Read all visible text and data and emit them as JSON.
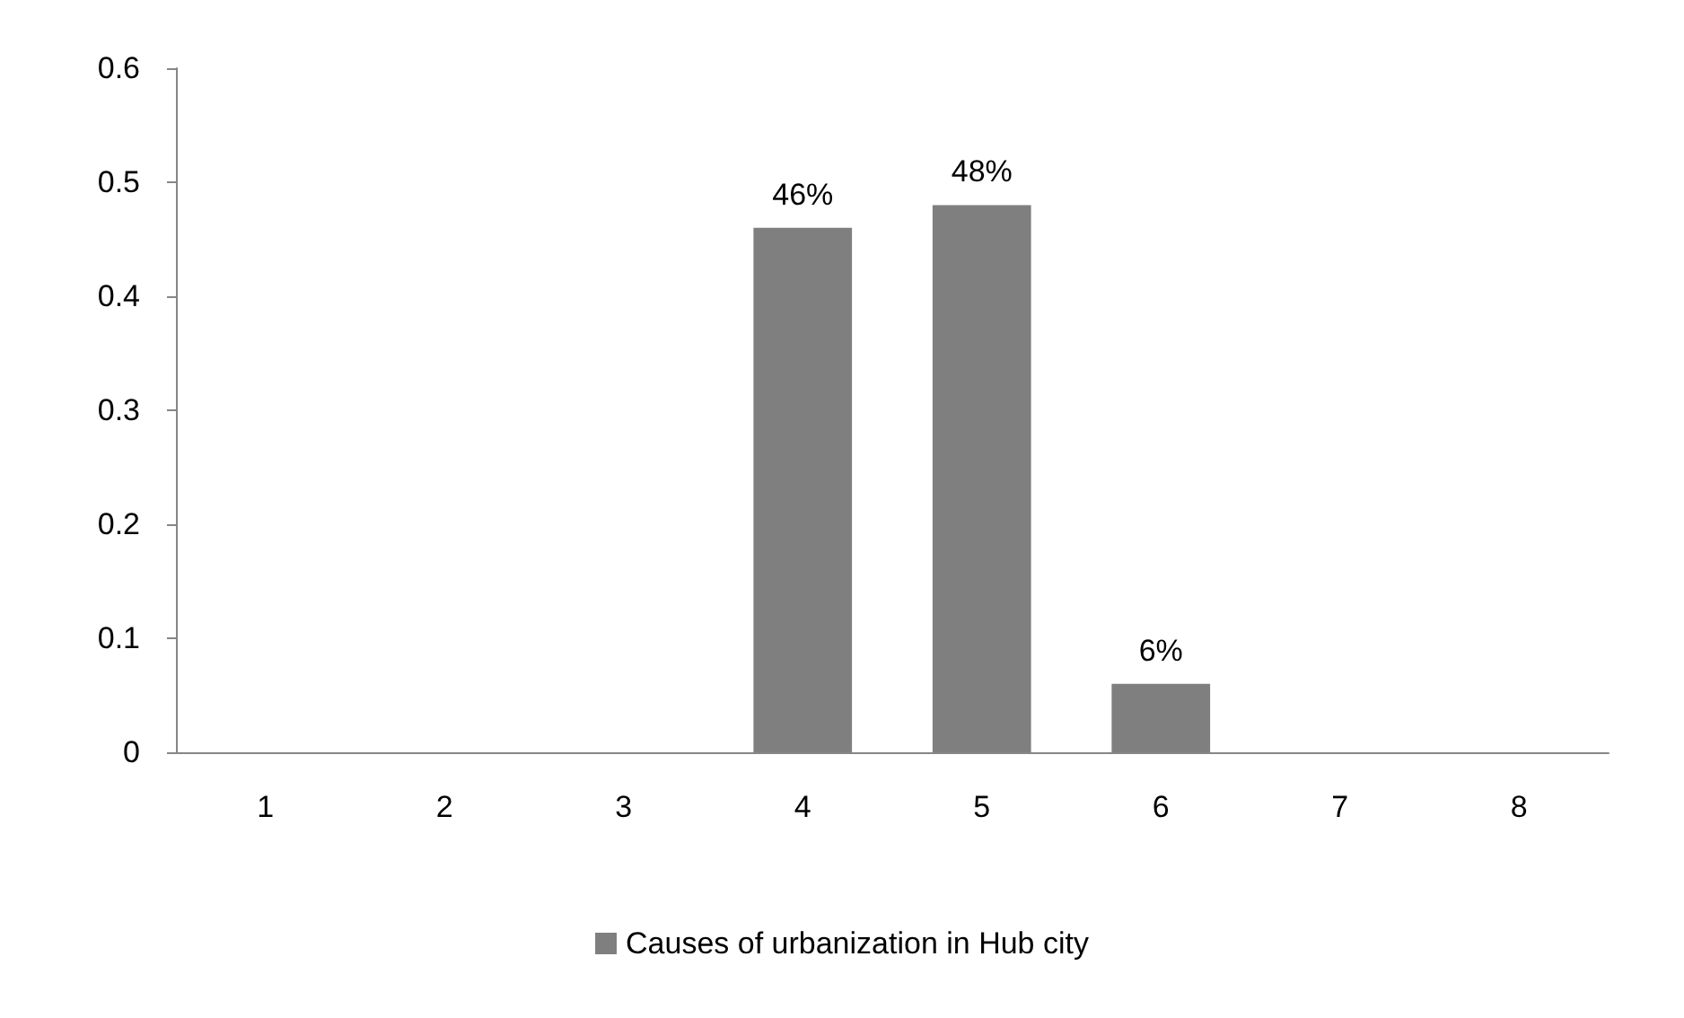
{
  "chart_data": {
    "type": "bar",
    "categories": [
      "1",
      "2",
      "3",
      "4",
      "5",
      "6",
      "7",
      "8"
    ],
    "series": [
      {
        "name": "Causes of urbanization in Hub city",
        "color": "#7f7f7f",
        "values": [
          0,
          0,
          0,
          0.46,
          0.48,
          0.06,
          0,
          0
        ],
        "value_labels": [
          null,
          null,
          null,
          "46%",
          "48%",
          "6%",
          null,
          null
        ]
      }
    ],
    "ylim": [
      0,
      0.6
    ],
    "yticks": [
      0,
      0.1,
      0.2,
      0.3,
      0.4,
      0.5,
      0.6
    ],
    "grid": false,
    "legend": "bottom"
  }
}
